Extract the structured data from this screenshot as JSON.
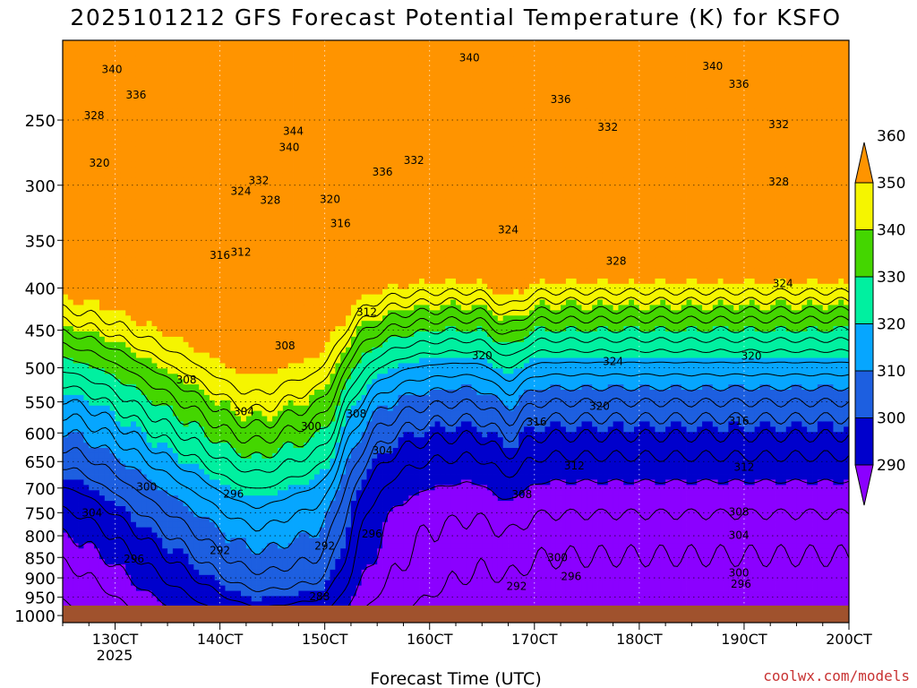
{
  "chart_data": {
    "type": "heatmap",
    "title": "2025101212 GFS Forecast Potential Temperature (K) for KSFO",
    "xlabel": "Forecast Time (UTC)",
    "ylabel": "",
    "x_ticks": [
      "130CT",
      "140CT",
      "150CT",
      "160CT",
      "170CT",
      "180CT",
      "190CT",
      "200CT"
    ],
    "x_tick_sub": "2025",
    "x_range_days": [
      12.5,
      20.0
    ],
    "y_axis": "pressure (hPa), log scale, inverted",
    "y_ticks": [
      250,
      300,
      350,
      400,
      450,
      500,
      550,
      600,
      650,
      700,
      750,
      800,
      850,
      900,
      950,
      1000
    ],
    "y_range": [
      200,
      1020
    ],
    "colorbar": {
      "levels": [
        290,
        300,
        310,
        320,
        330,
        340,
        350,
        360
      ],
      "colors": [
        "#8b00ff",
        "#0000cc",
        "#1d5fe0",
        "#06a6ff",
        "#00f0a0",
        "#44d600",
        "#f5f500",
        "#ff9400"
      ]
    },
    "contour_interval": 4,
    "contour_labels": [
      {
        "x": 12.97,
        "p": 217,
        "v": "340"
      },
      {
        "x": 13.2,
        "p": 233,
        "v": "336"
      },
      {
        "x": 12.8,
        "p": 247,
        "v": "328"
      },
      {
        "x": 12.85,
        "p": 282,
        "v": "320"
      },
      {
        "x": 14.2,
        "p": 305,
        "v": "324"
      },
      {
        "x": 14.37,
        "p": 296,
        "v": "332"
      },
      {
        "x": 14.48,
        "p": 313,
        "v": "328"
      },
      {
        "x": 14.7,
        "p": 258,
        "v": "344"
      },
      {
        "x": 14.66,
        "p": 270,
        "v": "340"
      },
      {
        "x": 15.05,
        "p": 312,
        "v": "320"
      },
      {
        "x": 15.15,
        "p": 334,
        "v": "316"
      },
      {
        "x": 14.0,
        "p": 365,
        "v": "316"
      },
      {
        "x": 14.2,
        "p": 362,
        "v": "312"
      },
      {
        "x": 15.4,
        "p": 428,
        "v": "312"
      },
      {
        "x": 14.62,
        "p": 470,
        "v": "308"
      },
      {
        "x": 15.3,
        "p": 569,
        "v": "308"
      },
      {
        "x": 13.68,
        "p": 517,
        "v": "308"
      },
      {
        "x": 14.23,
        "p": 565,
        "v": "304"
      },
      {
        "x": 14.87,
        "p": 589,
        "v": "300"
      },
      {
        "x": 15.55,
        "p": 630,
        "v": "304"
      },
      {
        "x": 13.3,
        "p": 698,
        "v": "300"
      },
      {
        "x": 12.78,
        "p": 750,
        "v": "304"
      },
      {
        "x": 14.13,
        "p": 712,
        "v": "296"
      },
      {
        "x": 13.18,
        "p": 854,
        "v": "296"
      },
      {
        "x": 14.0,
        "p": 834,
        "v": "292"
      },
      {
        "x": 15.45,
        "p": 796,
        "v": "296"
      },
      {
        "x": 15.0,
        "p": 823,
        "v": "292"
      },
      {
        "x": 14.95,
        "p": 949,
        "v": "288"
      },
      {
        "x": 15.55,
        "p": 289,
        "v": "336"
      },
      {
        "x": 15.85,
        "p": 280,
        "v": "332"
      },
      {
        "x": 16.38,
        "p": 210,
        "v": "340"
      },
      {
        "x": 17.25,
        "p": 236,
        "v": "336"
      },
      {
        "x": 16.75,
        "p": 340,
        "v": "324"
      },
      {
        "x": 16.5,
        "p": 483,
        "v": "320"
      },
      {
        "x": 17.02,
        "p": 582,
        "v": "316"
      },
      {
        "x": 17.38,
        "p": 658,
        "v": "312"
      },
      {
        "x": 16.88,
        "p": 713,
        "v": "308"
      },
      {
        "x": 17.22,
        "p": 851,
        "v": "300"
      },
      {
        "x": 17.35,
        "p": 896,
        "v": "296"
      },
      {
        "x": 16.83,
        "p": 922,
        "v": "292"
      },
      {
        "x": 17.7,
        "p": 255,
        "v": "332"
      },
      {
        "x": 17.78,
        "p": 371,
        "v": "328"
      },
      {
        "x": 17.75,
        "p": 491,
        "v": "324"
      },
      {
        "x": 17.62,
        "p": 557,
        "v": "320"
      },
      {
        "x": 18.7,
        "p": 215,
        "v": "340"
      },
      {
        "x": 18.95,
        "p": 226,
        "v": "336"
      },
      {
        "x": 19.33,
        "p": 253,
        "v": "332"
      },
      {
        "x": 19.33,
        "p": 297,
        "v": "328"
      },
      {
        "x": 19.37,
        "p": 395,
        "v": "324"
      },
      {
        "x": 19.07,
        "p": 484,
        "v": "320"
      },
      {
        "x": 18.95,
        "p": 580,
        "v": "316"
      },
      {
        "x": 19.0,
        "p": 660,
        "v": "312"
      },
      {
        "x": 18.95,
        "p": 748,
        "v": "308"
      },
      {
        "x": 18.95,
        "p": 799,
        "v": "304"
      },
      {
        "x": 18.95,
        "p": 888,
        "v": "300"
      },
      {
        "x": 18.97,
        "p": 916,
        "v": "296"
      }
    ]
  },
  "credit": "coolwx.com/models"
}
